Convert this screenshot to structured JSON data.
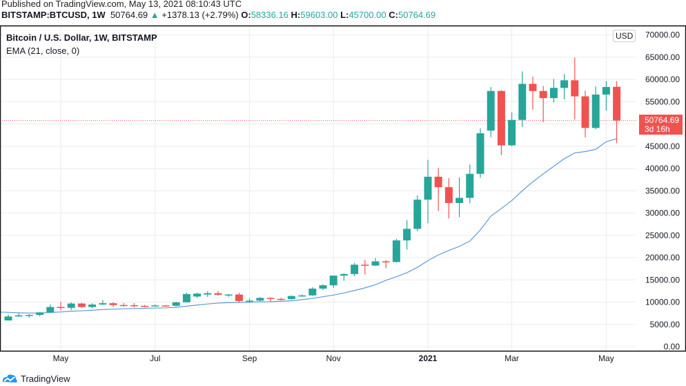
{
  "published": "Published on TradingView.com, May 13, 2021 08:10:43 UTC",
  "header": {
    "symbol": "BITSTAMP:BTCUSD, 1W",
    "last": "50764.69",
    "change": "+1378.13 (+2.79%)",
    "o_label": "O:",
    "o": "58336.16",
    "h_label": "H:",
    "h": "59603.00",
    "l_label": "L:",
    "l": "45700.00",
    "c_label": "C:",
    "c": "50764.69"
  },
  "legend": {
    "title": "Bitcoin / U.S. Dollar, 1W, BITSTAMP",
    "indicator": "EMA (21, close, 0)"
  },
  "currency": "USD",
  "price_label": {
    "price": "50764.69",
    "countdown": "3d 16h"
  },
  "brand": "TradingView",
  "colors": {
    "up": "#26a69a",
    "down": "#ef5350",
    "ema": "#5b9bd5",
    "grid": "#ebebeb"
  },
  "chart_data": {
    "type": "candlestick",
    "title": "Bitcoin / U.S. Dollar, 1W, BITSTAMP",
    "ylim": [
      0,
      70000
    ],
    "grid": true,
    "y_ticks": [
      0,
      5000,
      10000,
      15000,
      20000,
      25000,
      30000,
      35000,
      40000,
      45000,
      50000,
      55000,
      60000,
      65000,
      70000
    ],
    "y_tick_labels": [
      "0.00",
      "5000.00",
      "10000.00",
      "15000.00",
      "20000.00",
      "25000.00",
      "30000.00",
      "35000.00",
      "40000.00",
      "45000.00",
      "",
      "55000.00",
      "60000.00",
      "65000.00",
      "70000.00"
    ],
    "x_ticks": [
      {
        "label": "May",
        "index": 5
      },
      {
        "label": "Jul",
        "index": 14
      },
      {
        "label": "Sep",
        "index": 23
      },
      {
        "label": "Nov",
        "index": 31
      },
      {
        "label": "2021",
        "index": 40,
        "bold": true
      },
      {
        "label": "Mar",
        "index": 48
      },
      {
        "label": "May",
        "index": 57
      }
    ],
    "columns": [
      "week",
      "open",
      "high",
      "low",
      "close"
    ],
    "candles": [
      [
        "2020-03-30",
        5880,
        7200,
        5860,
        6775
      ],
      [
        "2020-04-06",
        6775,
        7470,
        6700,
        7030
      ],
      [
        "2020-04-13",
        7030,
        7300,
        6500,
        7120
      ],
      [
        "2020-04-20",
        7120,
        7750,
        6800,
        7690
      ],
      [
        "2020-04-27",
        7690,
        9470,
        7640,
        8900
      ],
      [
        "2020-05-04",
        8900,
        10070,
        8120,
        8720
      ],
      [
        "2020-05-11",
        8720,
        9950,
        8200,
        9680
      ],
      [
        "2020-05-18",
        9680,
        9850,
        8700,
        8900
      ],
      [
        "2020-05-25",
        8900,
        9740,
        8640,
        9450
      ],
      [
        "2020-06-01",
        9450,
        10430,
        9370,
        9750
      ],
      [
        "2020-06-08",
        9750,
        9990,
        8900,
        9340
      ],
      [
        "2020-06-15",
        9340,
        9800,
        9000,
        9300
      ],
      [
        "2020-06-22",
        9300,
        9770,
        8820,
        9160
      ],
      [
        "2020-06-29",
        9160,
        9380,
        8900,
        9070
      ],
      [
        "2020-07-06",
        9070,
        9470,
        9050,
        9250
      ],
      [
        "2020-07-13",
        9250,
        9340,
        9000,
        9170
      ],
      [
        "2020-07-20",
        9170,
        10100,
        9040,
        9950
      ],
      [
        "2020-07-27",
        9950,
        12100,
        9920,
        11800
      ],
      [
        "2020-08-03",
        11250,
        12100,
        10950,
        11900
      ],
      [
        "2020-08-10",
        11700,
        12450,
        11150,
        12000
      ],
      [
        "2020-08-17",
        12000,
        12480,
        11500,
        11650
      ],
      [
        "2020-08-24",
        11650,
        11800,
        11150,
        11700
      ],
      [
        "2020-08-31",
        11700,
        12080,
        9900,
        10250
      ],
      [
        "2020-09-07",
        10250,
        10800,
        9880,
        10330
      ],
      [
        "2020-09-14",
        10330,
        11150,
        10200,
        10940
      ],
      [
        "2020-09-21",
        10940,
        11100,
        10150,
        10730
      ],
      [
        "2020-09-28",
        10730,
        10950,
        10380,
        10670
      ],
      [
        "2020-10-05",
        10670,
        11500,
        10530,
        11370
      ],
      [
        "2020-10-12",
        11370,
        11720,
        11200,
        11500
      ],
      [
        "2020-10-19",
        11500,
        13350,
        11420,
        13030
      ],
      [
        "2020-10-26",
        13030,
        14000,
        12700,
        13770
      ],
      [
        "2020-11-02",
        13770,
        15950,
        13200,
        15950
      ],
      [
        "2020-11-09",
        15950,
        16480,
        14800,
        16300
      ],
      [
        "2020-11-16",
        16300,
        18800,
        15800,
        18400
      ],
      [
        "2020-11-23",
        18400,
        19500,
        16200,
        18200
      ],
      [
        "2020-11-30",
        18200,
        19900,
        18100,
        19150
      ],
      [
        "2020-12-07",
        19150,
        19400,
        17600,
        19000
      ],
      [
        "2020-12-14",
        19000,
        24200,
        18900,
        23850
      ],
      [
        "2020-12-21",
        23850,
        28400,
        21800,
        26450
      ],
      [
        "2020-12-28",
        26450,
        34000,
        25900,
        33000
      ],
      [
        "2021-01-04",
        33000,
        41950,
        27700,
        38150
      ],
      [
        "2021-01-11",
        38150,
        40100,
        30400,
        35800
      ],
      [
        "2021-01-18",
        35800,
        37850,
        28800,
        32250
      ],
      [
        "2021-01-25",
        32250,
        38000,
        29100,
        33400
      ],
      [
        "2021-02-01",
        33400,
        40900,
        32200,
        38800
      ],
      [
        "2021-02-08",
        38800,
        49000,
        37900,
        47900
      ],
      [
        "2021-02-15",
        48500,
        58300,
        47000,
        57400
      ],
      [
        "2021-02-22",
        57400,
        57600,
        43000,
        45200
      ],
      [
        "2021-03-01",
        45200,
        52600,
        45000,
        50900
      ],
      [
        "2021-03-08",
        50900,
        61800,
        49300,
        59000
      ],
      [
        "2021-03-15",
        59000,
        60600,
        53200,
        57400
      ],
      [
        "2021-03-22",
        57400,
        58500,
        50400,
        55800
      ],
      [
        "2021-03-29",
        55800,
        60100,
        54800,
        58100
      ],
      [
        "2021-04-05",
        58100,
        61200,
        55500,
        59800
      ],
      [
        "2021-04-12",
        59800,
        64900,
        51000,
        56200
      ],
      [
        "2021-04-19",
        56200,
        57500,
        47000,
        49100
      ],
      [
        "2021-04-26",
        49100,
        58400,
        48800,
        56600
      ],
      [
        "2021-05-03",
        56600,
        59600,
        53000,
        58300
      ],
      [
        "2021-05-10",
        58336.16,
        59603,
        45700,
        50764.69
      ]
    ],
    "ema": {
      "name": "EMA (21, close, 0)",
      "values": [
        7700,
        7600,
        7550,
        7550,
        7680,
        7780,
        7950,
        8050,
        8180,
        8330,
        8420,
        8500,
        8560,
        8610,
        8670,
        8710,
        8820,
        9090,
        9340,
        9580,
        9780,
        9880,
        9920,
        9990,
        10040,
        10080,
        10190,
        10290,
        10540,
        10840,
        11210,
        11580,
        12050,
        12600,
        13200,
        13900,
        14900,
        15700,
        16600,
        17800,
        19300,
        20600,
        21600,
        22500,
        23700,
        26200,
        29300,
        31000,
        32800,
        35000,
        37000,
        38800,
        40500,
        42200,
        43500,
        43800,
        44300,
        46000,
        46700
      ]
    },
    "last_price": 50764.69
  }
}
